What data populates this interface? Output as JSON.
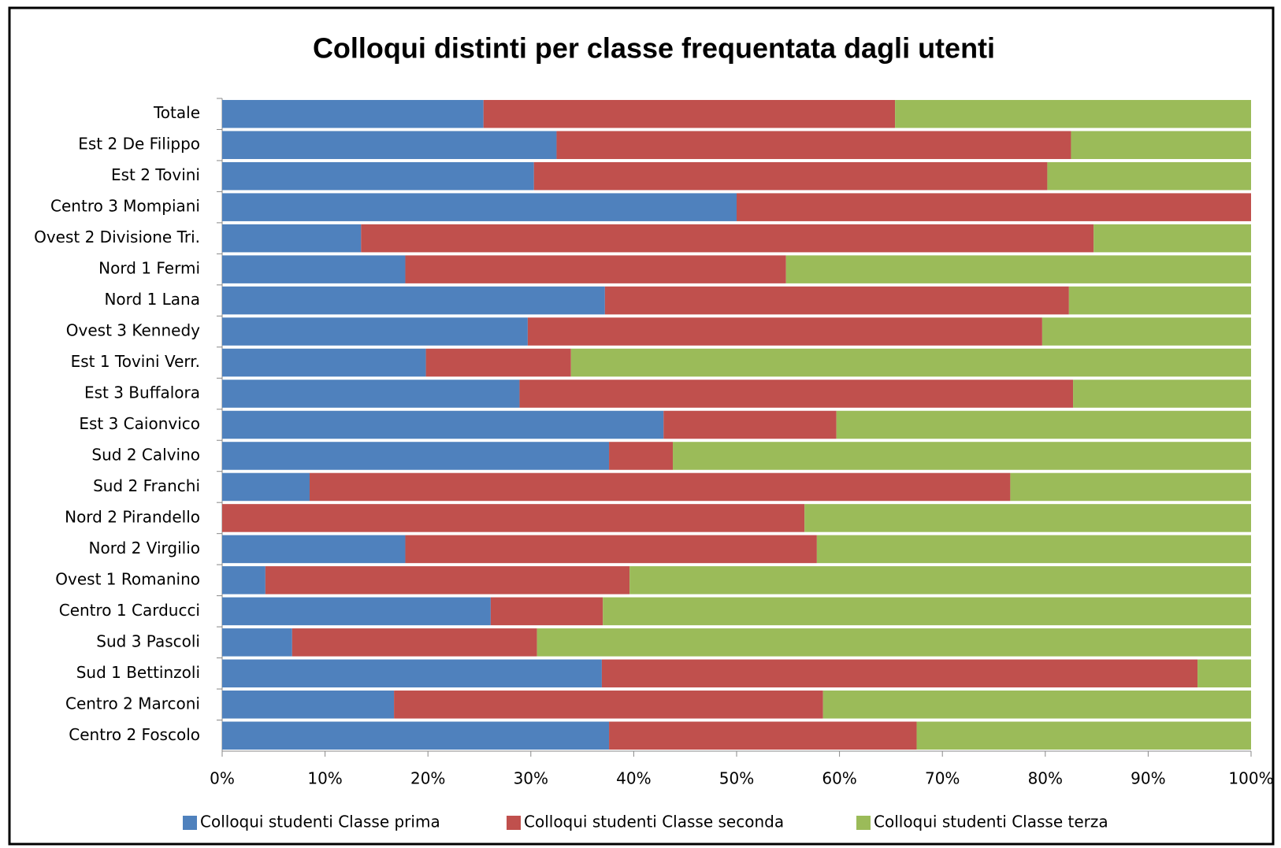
{
  "chart_data": {
    "type": "bar",
    "orientation": "horizontal",
    "stacked": "percent",
    "title": "Colloqui distinti per  classe frequentata dagli utenti",
    "categories": [
      "Totale",
      "Est 2 De Filippo",
      "Est 2 Tovini",
      "Centro 3 Mompiani",
      "Ovest 2 Divisione Tri.",
      "Nord 1 Fermi",
      "Nord 1 Lana",
      "Ovest 3 Kennedy",
      "Est 1 Tovini Verr.",
      "Est 3 Buffalora",
      "Est 3 Caionvico",
      "Sud 2 Calvino",
      "Sud 2 Franchi",
      "Nord 2 Pirandello",
      "Nord 2 Virgilio",
      "Ovest 1 Romanino",
      "Centro 1 Carducci",
      "Sud 3 Pascoli",
      "Sud 1 Bettinzoli",
      "Centro 2 Marconi",
      "Centro 2 Foscolo"
    ],
    "series": [
      {
        "name": "Colloqui studenti Classe prima",
        "color": "#4f81bd",
        "values": [
          25.4,
          32.5,
          30.3,
          50,
          13.5,
          17.8,
          37.2,
          29.7,
          19.8,
          28.9,
          42.9,
          37.6,
          8.5,
          0,
          17.8,
          4.2,
          26.1,
          6.8,
          36.9,
          16.7,
          37.6
        ]
      },
      {
        "name": "Colloqui  studenti Classe seconda",
        "color": "#c0504d",
        "values": [
          40.0,
          50.0,
          49.9,
          50,
          71.2,
          37.0,
          45.1,
          50.0,
          14.1,
          53.8,
          16.8,
          6.2,
          68.1,
          56.6,
          40.0,
          35.4,
          10.9,
          23.8,
          57.9,
          41.7,
          29.9
        ]
      },
      {
        "name": "Colloqui  studenti Classe terza",
        "color": "#9bbb59",
        "values": [
          34.6,
          17.5,
          19.8,
          0,
          15.3,
          45.2,
          17.7,
          20.3,
          66.1,
          17.3,
          40.3,
          56.2,
          23.4,
          43.4,
          42.2,
          60.4,
          63.0,
          69.4,
          5.2,
          41.6,
          32.5
        ]
      }
    ],
    "xlim": [
      0,
      100
    ],
    "xticks": [
      {
        "value": 0,
        "label": "0%"
      },
      {
        "value": 10,
        "label": "10%"
      },
      {
        "value": 20,
        "label": "20%"
      },
      {
        "value": 30,
        "label": "30%"
      },
      {
        "value": 40,
        "label": "40%"
      },
      {
        "value": 50,
        "label": "50%"
      },
      {
        "value": 60,
        "label": "60%"
      },
      {
        "value": 70,
        "label": "70%"
      },
      {
        "value": 80,
        "label": "80%"
      },
      {
        "value": 90,
        "label": "90%"
      },
      {
        "value": 100,
        "label": "100%"
      }
    ],
    "legend": "bottom"
  }
}
